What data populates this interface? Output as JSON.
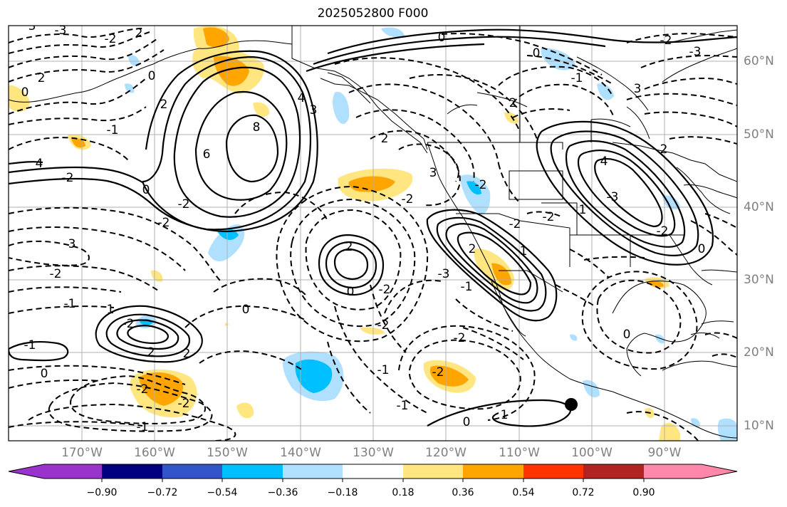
{
  "title": "2025052800 F000",
  "lat_labels": [
    "60°N",
    "50°N",
    "40°N",
    "30°N",
    "20°N",
    "10°N"
  ],
  "lon_labels": [
    "170°W",
    "160°W",
    "150°W",
    "140°W",
    "130°W",
    "120°W",
    "110°W",
    "100°W",
    "90°W"
  ],
  "colorbar": {
    "tick_labels": [
      "−0.90",
      "−0.72",
      "−0.54",
      "−0.36",
      "−0.18",
      "0.18",
      "0.36",
      "0.54",
      "0.72",
      "0.90"
    ],
    "colors": [
      "#9933cc",
      "#000080",
      "#3355cc",
      "#00bfff",
      "#b0e0ff",
      "#ffffff",
      "#ffe680",
      "#ffa500",
      "#ff3300",
      "#b22222",
      "#ff88aa"
    ]
  },
  "colors": {
    "positive_fill": "#ffa500",
    "light_positive_fill": "#ffe680",
    "negative_fill": "#00bfff",
    "light_negative_fill": "#b0e0ff"
  },
  "contour_labels": [
    "-3",
    "-2",
    "2",
    "3",
    "0",
    "2",
    "4",
    "0",
    "6",
    "8",
    "3",
    "4",
    "2",
    "-2",
    "-1",
    "0",
    "-3",
    "-2",
    "-1",
    "0",
    "-2",
    "-1",
    "-1",
    "2",
    "-2",
    "0",
    "-2",
    "-2",
    "-2",
    "2",
    "2",
    "3",
    "-2",
    "0",
    "2",
    "-2",
    "-3",
    "-1",
    "-2",
    "1",
    "1",
    "0",
    "-2",
    "-2",
    "-1",
    "-2",
    "2",
    "1",
    "0",
    "0",
    "-2",
    "-1",
    "-3",
    "-2",
    "4",
    "2",
    "3",
    "-3",
    "-2",
    "0",
    "2",
    "1",
    "-1",
    "-2",
    "0"
  ],
  "marker": "storm-center-dot"
}
